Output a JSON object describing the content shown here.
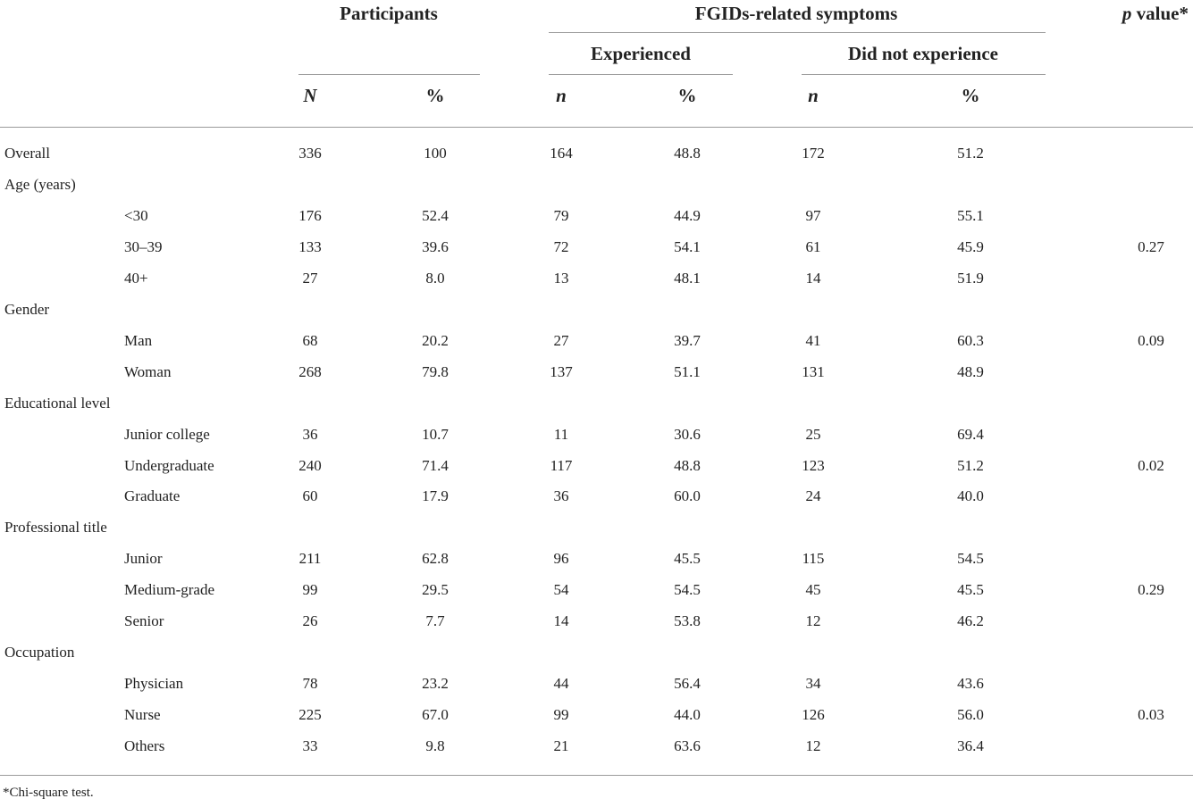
{
  "table": {
    "header": {
      "participants": "Participants",
      "fgids": "FGIDs-related symptoms",
      "p_value_letter": "p",
      "p_value_rest": " value*",
      "experienced": "Experienced",
      "did_not": "Did not experience",
      "N": "N",
      "pct": "%",
      "n": "n"
    },
    "rows": [
      {
        "label": "Overall",
        "indent": false,
        "N": "336",
        "pct": "100",
        "en": "164",
        "epct": "48.8",
        "dn": "172",
        "dpct": "51.2",
        "p": ""
      },
      {
        "label": "Age (years)",
        "indent": false,
        "N": "",
        "pct": "",
        "en": "",
        "epct": "",
        "dn": "",
        "dpct": "",
        "p": ""
      },
      {
        "label": "<30",
        "indent": true,
        "N": "176",
        "pct": "52.4",
        "en": "79",
        "epct": "44.9",
        "dn": "97",
        "dpct": "55.1",
        "p": ""
      },
      {
        "label": "30–39",
        "indent": true,
        "N": "133",
        "pct": "39.6",
        "en": "72",
        "epct": "54.1",
        "dn": "61",
        "dpct": "45.9",
        "p": "0.27"
      },
      {
        "label": "40+",
        "indent": true,
        "N": "27",
        "pct": "8.0",
        "en": "13",
        "epct": "48.1",
        "dn": "14",
        "dpct": "51.9",
        "p": ""
      },
      {
        "label": "Gender",
        "indent": false,
        "N": "",
        "pct": "",
        "en": "",
        "epct": "",
        "dn": "",
        "dpct": "",
        "p": ""
      },
      {
        "label": "Man",
        "indent": true,
        "N": "68",
        "pct": "20.2",
        "en": "27",
        "epct": "39.7",
        "dn": "41",
        "dpct": "60.3",
        "p": "0.09"
      },
      {
        "label": "Woman",
        "indent": true,
        "N": "268",
        "pct": "79.8",
        "en": "137",
        "epct": "51.1",
        "dn": "131",
        "dpct": "48.9",
        "p": ""
      },
      {
        "label": "Educational level",
        "indent": false,
        "N": "",
        "pct": "",
        "en": "",
        "epct": "",
        "dn": "",
        "dpct": "",
        "p": ""
      },
      {
        "label": "Junior college",
        "indent": true,
        "N": "36",
        "pct": "10.7",
        "en": "11",
        "epct": "30.6",
        "dn": "25",
        "dpct": "69.4",
        "p": ""
      },
      {
        "label": "Undergraduate",
        "indent": true,
        "N": "240",
        "pct": "71.4",
        "en": "117",
        "epct": "48.8",
        "dn": "123",
        "dpct": "51.2",
        "p": "0.02"
      },
      {
        "label": "Graduate",
        "indent": true,
        "N": "60",
        "pct": "17.9",
        "en": "36",
        "epct": "60.0",
        "dn": "24",
        "dpct": "40.0",
        "p": ""
      },
      {
        "label": "Professional title",
        "indent": false,
        "N": "",
        "pct": "",
        "en": "",
        "epct": "",
        "dn": "",
        "dpct": "",
        "p": ""
      },
      {
        "label": "Junior",
        "indent": true,
        "N": "211",
        "pct": "62.8",
        "en": "96",
        "epct": "45.5",
        "dn": "115",
        "dpct": "54.5",
        "p": ""
      },
      {
        "label": "Medium-grade",
        "indent": true,
        "N": "99",
        "pct": "29.5",
        "en": "54",
        "epct": "54.5",
        "dn": "45",
        "dpct": "45.5",
        "p": "0.29"
      },
      {
        "label": "Senior",
        "indent": true,
        "N": "26",
        "pct": "7.7",
        "en": "14",
        "epct": "53.8",
        "dn": "12",
        "dpct": "46.2",
        "p": ""
      },
      {
        "label": "Occupation",
        "indent": false,
        "N": "",
        "pct": "",
        "en": "",
        "epct": "",
        "dn": "",
        "dpct": "",
        "p": ""
      },
      {
        "label": "Physician",
        "indent": true,
        "N": "78",
        "pct": "23.2",
        "en": "44",
        "epct": "56.4",
        "dn": "34",
        "dpct": "43.6",
        "p": ""
      },
      {
        "label": "Nurse",
        "indent": true,
        "N": "225",
        "pct": "67.0",
        "en": "99",
        "epct": "44.0",
        "dn": "126",
        "dpct": "56.0",
        "p": "0.03"
      },
      {
        "label": "Others",
        "indent": true,
        "N": "33",
        "pct": "9.8",
        "en": "21",
        "epct": "63.6",
        "dn": "12",
        "dpct": "36.4",
        "p": ""
      }
    ],
    "footnote": "*Chi-square test."
  }
}
